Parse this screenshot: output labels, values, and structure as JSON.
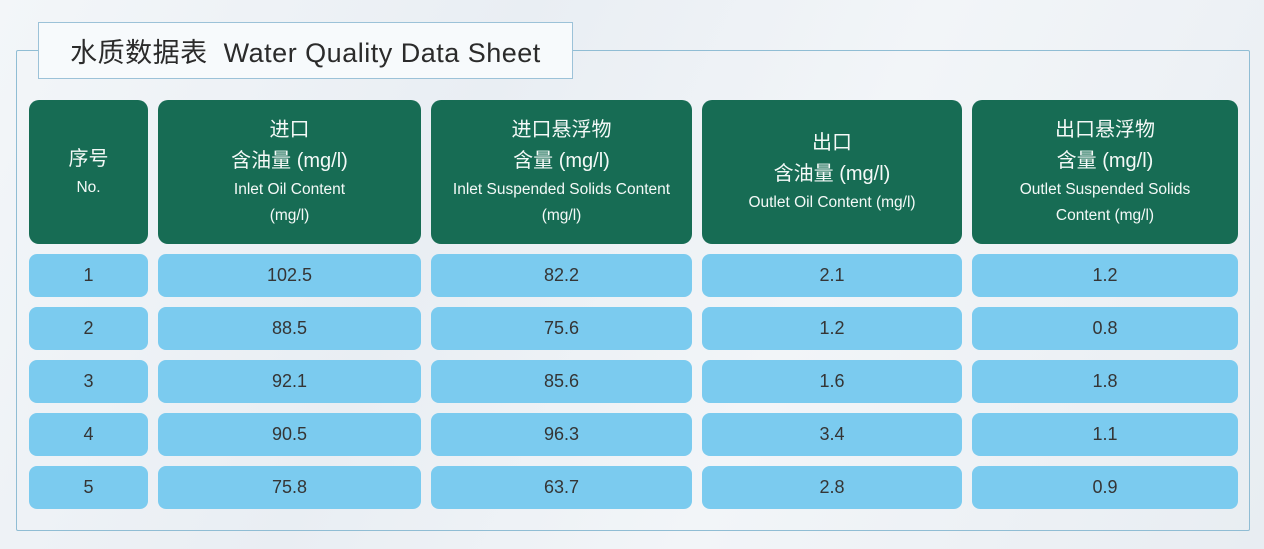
{
  "title": "水质数据表  Water Quality Data Sheet",
  "colors": {
    "header_green": "#176c54",
    "cell_blue": "#7bcbef",
    "frame_border": "#90bdd4",
    "page_background": "#eef1f5",
    "header_text": "#ffffff",
    "cell_text": "#353535"
  },
  "chart_data": {
    "type": "table",
    "title": "水质数据表 Water Quality Data Sheet",
    "columns": [
      {
        "zh_lines": [
          "序号"
        ],
        "en_lines": [
          "No."
        ]
      },
      {
        "zh_lines": [
          "进口",
          "含油量 (mg/l)"
        ],
        "en_lines": [
          "Inlet Oil Content",
          "(mg/l)"
        ]
      },
      {
        "zh_lines": [
          "进口悬浮物",
          "含量 (mg/l)"
        ],
        "en_lines": [
          "Inlet Suspended Solids Content",
          "(mg/l)"
        ]
      },
      {
        "zh_lines": [
          "出口",
          "含油量 (mg/l)"
        ],
        "en_lines": [
          "Outlet Oil Content (mg/l)"
        ]
      },
      {
        "zh_lines": [
          "出口悬浮物",
          "含量 (mg/l)"
        ],
        "en_lines": [
          "Outlet Suspended Solids",
          "Content (mg/l)"
        ]
      }
    ],
    "rows": [
      [
        "1",
        "102.5",
        "82.2",
        "2.1",
        "1.2"
      ],
      [
        "2",
        "88.5",
        "75.6",
        "1.2",
        "0.8"
      ],
      [
        "3",
        "92.1",
        "85.6",
        "1.6",
        "1.8"
      ],
      [
        "4",
        "90.5",
        "96.3",
        "3.4",
        "1.1"
      ],
      [
        "5",
        "75.8",
        "63.7",
        "2.8",
        "0.9"
      ]
    ]
  }
}
